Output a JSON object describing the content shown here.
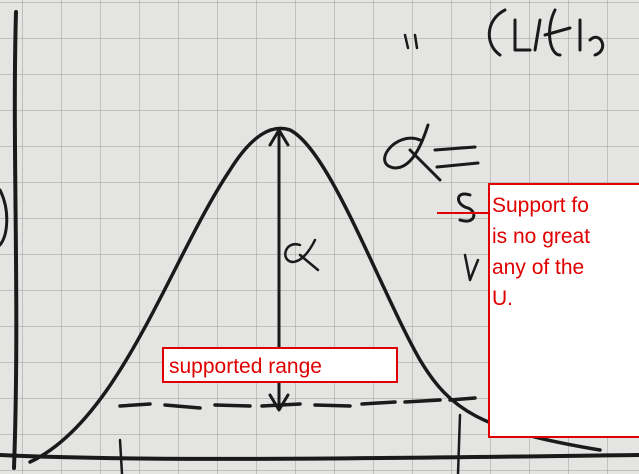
{
  "annotations": {
    "range_label": "supported range",
    "support_note": [
      "Support fo",
      "is no great",
      "any of the",
      "U."
    ]
  }
}
